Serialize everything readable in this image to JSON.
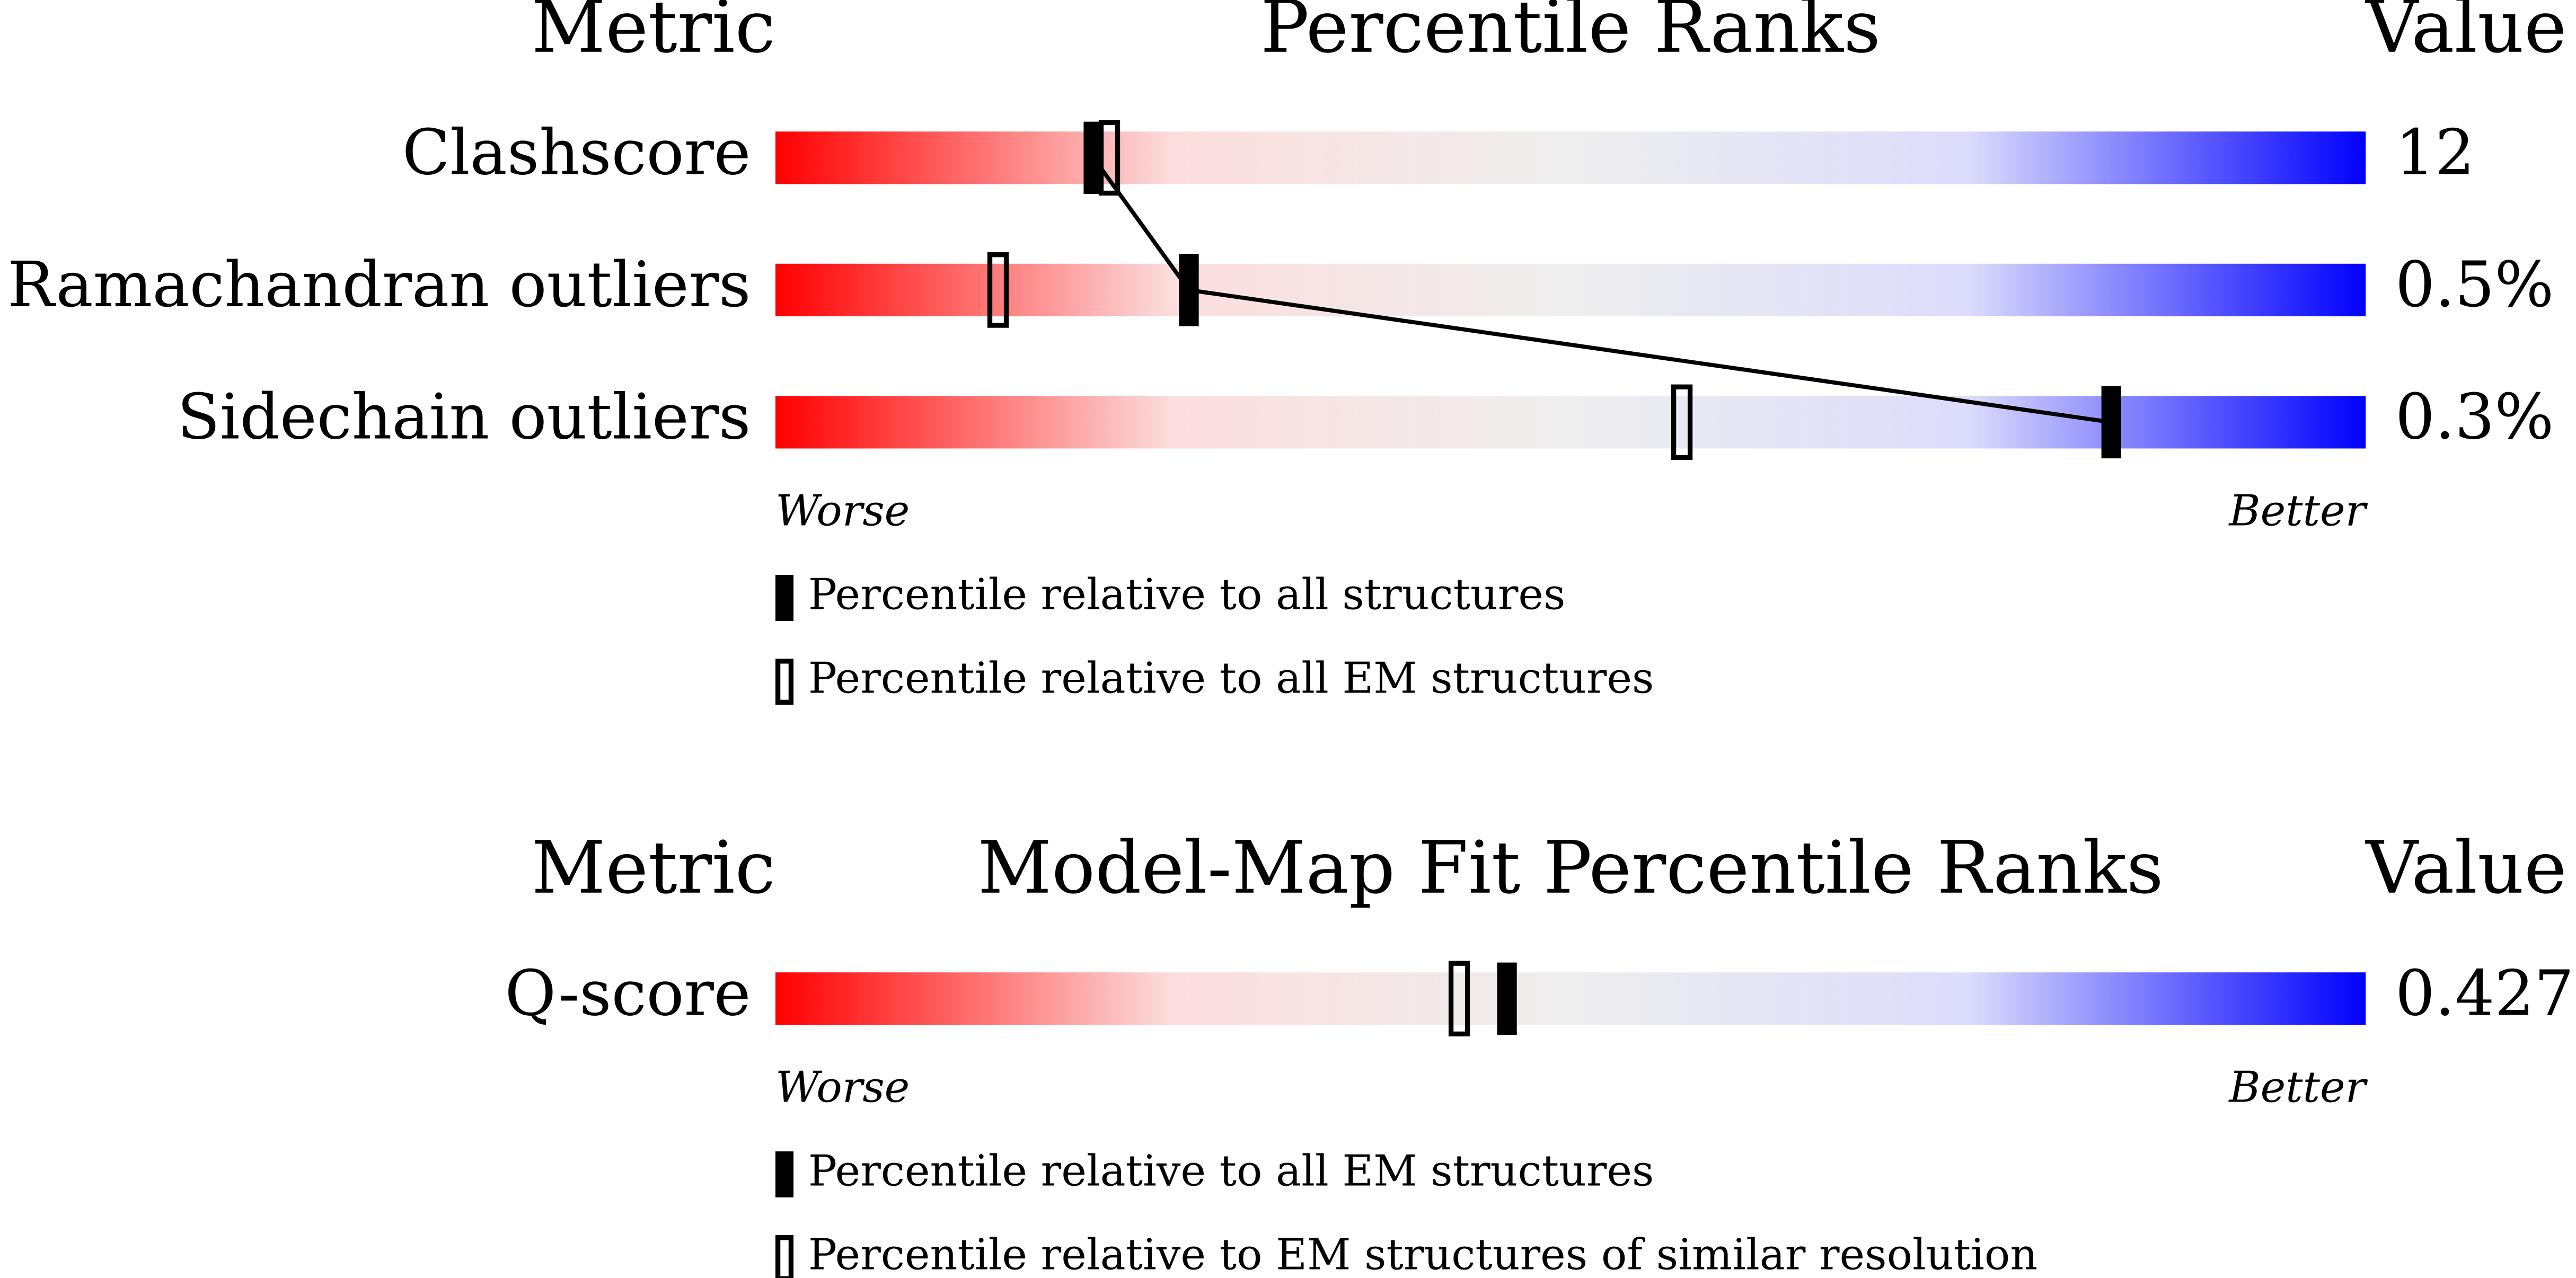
{
  "chart_data": [
    {
      "type": "percentile-slider",
      "metric_header": "Metric",
      "title": "Percentile Ranks",
      "value_header": "Value",
      "categories": [
        "Clashscore",
        "Ramachandran outliers",
        "Sidechain outliers"
      ],
      "metric_values": [
        "12",
        "0.5%",
        "0.3%"
      ],
      "xlim": [
        0,
        100
      ],
      "x_labels": [
        "Worse",
        "Better"
      ],
      "colors": [
        "#ff0000",
        "#fcdede",
        "#eeeeee",
        "#dcdcfc",
        "#0000ff"
      ],
      "series": [
        {
          "name": "Percentile relative to all structures",
          "marker": "filled",
          "connect": true,
          "color": "#000000",
          "values": [
            20,
            26,
            84
          ]
        },
        {
          "name": "Percentile relative to all EM structures",
          "marker": "open",
          "connect": false,
          "color": "#000000",
          "values": [
            21,
            14,
            57
          ]
        }
      ]
    },
    {
      "type": "percentile-slider",
      "metric_header": "Metric",
      "title": "Model-Map Fit Percentile Ranks",
      "value_header": "Value",
      "categories": [
        "Q-score"
      ],
      "metric_values": [
        "0.427"
      ],
      "xlim": [
        0,
        100
      ],
      "x_labels": [
        "Worse",
        "Better"
      ],
      "colors": [
        "#ff0000",
        "#fcdede",
        "#eeeeee",
        "#dcdcfc",
        "#0000ff"
      ],
      "series": [
        {
          "name": "Percentile relative to all EM structures",
          "marker": "filled",
          "connect": false,
          "color": "#000000",
          "values": [
            46
          ]
        },
        {
          "name": "Percentile relative to EM structures of similar resolution",
          "marker": "open",
          "connect": false,
          "color": "#000000",
          "values": [
            43
          ]
        }
      ]
    }
  ]
}
